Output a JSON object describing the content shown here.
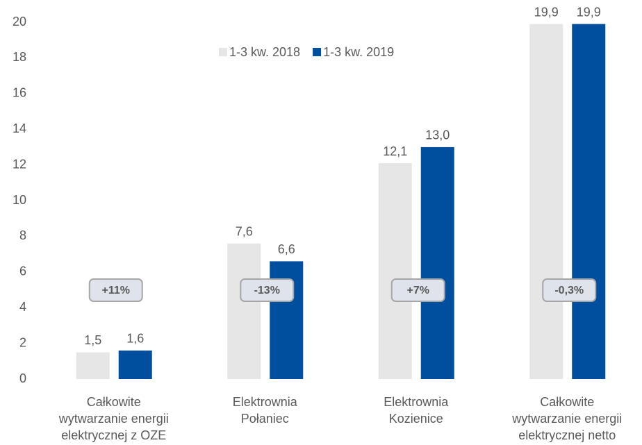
{
  "chart_data": {
    "type": "bar",
    "categories": [
      [
        "Całkowite",
        "wytwarzanie energii",
        "elektrycznej z OZE"
      ],
      [
        "Elektrownia",
        "Połaniec"
      ],
      [
        "Elektrownia",
        "Kozienice"
      ],
      [
        "Całkowite",
        "wytwarzanie energii",
        "elektrycznej netto"
      ]
    ],
    "series": [
      {
        "name": "1-3 kw. 2018",
        "color": "#e6e6e6",
        "values": [
          1.5,
          7.6,
          12.1,
          19.9
        ],
        "value_labels": [
          "1,5",
          "7,6",
          "12,1",
          "19,9"
        ]
      },
      {
        "name": "1-3 kw. 2019",
        "color": "#004f9f",
        "values": [
          1.6,
          6.6,
          13.0,
          19.9
        ],
        "value_labels": [
          "1,6",
          "6,6",
          "13,0",
          "19,9"
        ]
      }
    ],
    "annotations": [
      "+11%",
      "-13%",
      "+7%",
      "-0,3%"
    ],
    "ylim": [
      0,
      20
    ],
    "yticks": [
      0,
      2,
      4,
      6,
      8,
      10,
      12,
      14,
      16,
      18,
      20
    ],
    "grid": false,
    "legend": "top"
  }
}
